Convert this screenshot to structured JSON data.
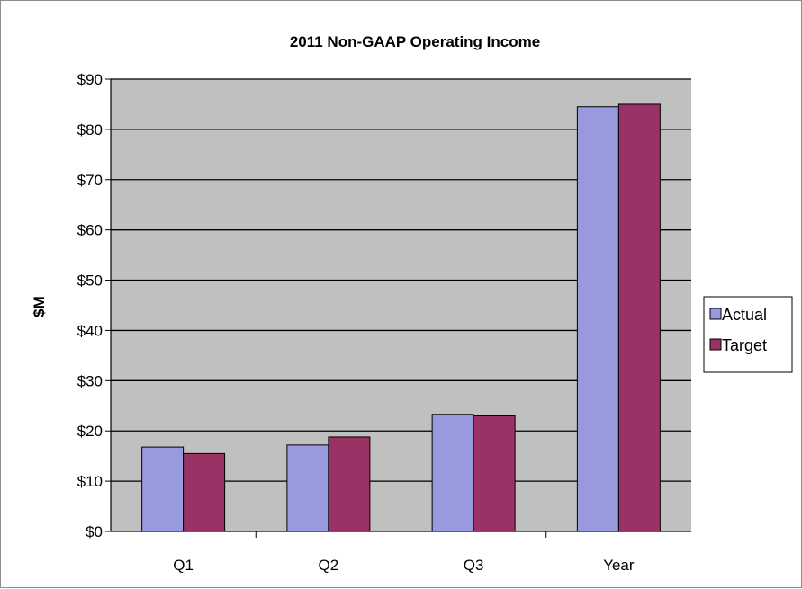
{
  "chart_data": {
    "type": "bar",
    "title": "2011 Non-GAAP  Operating Income",
    "xlabel": "",
    "ylabel": "$M",
    "categories": [
      "Q1",
      "Q2",
      "Q3",
      "Year"
    ],
    "series": [
      {
        "name": "Actual",
        "values": [
          16.8,
          17.2,
          23.3,
          84.5
        ],
        "color": "#9999e0"
      },
      {
        "name": "Target",
        "values": [
          15.5,
          18.8,
          23.0,
          85.0
        ],
        "color": "#993366"
      }
    ],
    "ylim": [
      0,
      90
    ],
    "yticks": [
      0,
      10,
      20,
      30,
      40,
      50,
      60,
      70,
      80,
      90
    ],
    "ytick_labels": [
      "$0",
      "$10",
      "$20",
      "$30",
      "$40",
      "$50",
      "$60",
      "$70",
      "$80",
      "$90"
    ],
    "grid": true,
    "plot_background": "#c0c0c0",
    "legend_position": "right"
  }
}
